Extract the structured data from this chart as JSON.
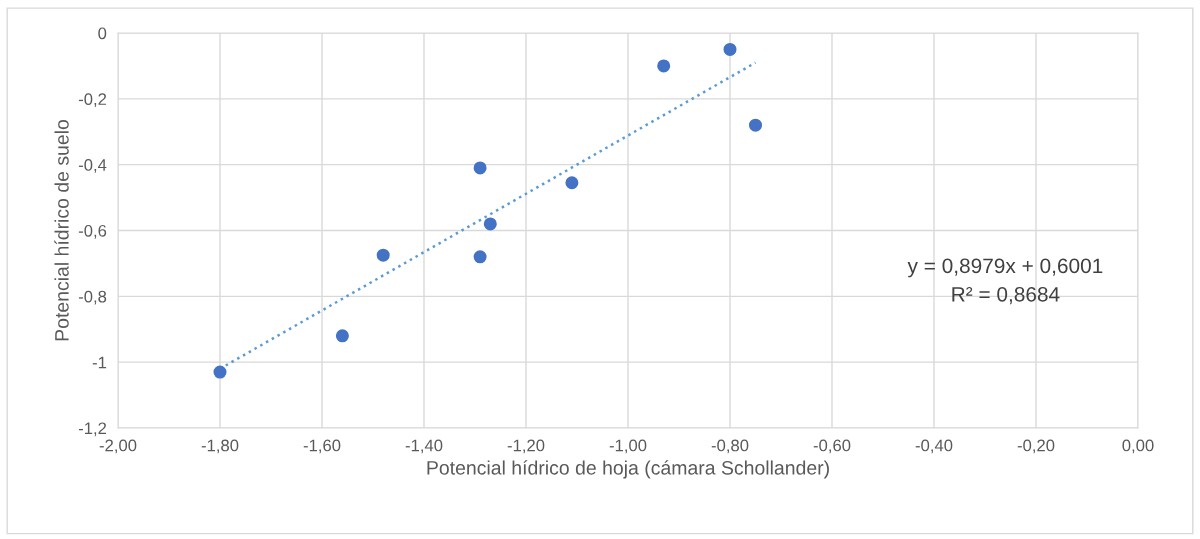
{
  "chart_data": {
    "type": "scatter",
    "xlabel": "Potencial hídrico de hoja (cámara Schollander)",
    "ylabel": "Potencial hídrico de suelo",
    "annotations": [
      "y = 0,8979x + 0,6001\nR² = 0,8684"
    ],
    "series": [
      {
        "color": "#4472c4",
        "marker": "circle",
        "x": [
          -1.8,
          -1.56,
          -1.48,
          -1.29,
          -1.29,
          -1.27,
          -1.11,
          -0.93,
          -0.8,
          -0.75
        ],
        "values": [
          -1.03,
          -0.92,
          -0.675,
          -0.41,
          -0.68,
          -0.58,
          -0.455,
          -0.1,
          -0.05,
          -0.28
        ]
      },
      {
        "type": "line",
        "color": "#5b9bd5",
        "line_style": "dotted",
        "marker": "none",
        "x": [
          -1.8,
          -0.75
        ],
        "values": [
          -1.02,
          -0.09
        ]
      }
    ],
    "xlim": [
      -2,
      0
    ],
    "xticks": [
      {
        "value": -2,
        "label": "-2,00"
      },
      {
        "value": -1.8,
        "label": "-1,80"
      },
      {
        "value": -1.6,
        "label": "-1,60"
      },
      {
        "value": -1.4,
        "label": "-1,40"
      },
      {
        "value": -1.2,
        "label": "-1,20"
      },
      {
        "value": -1,
        "label": "-1,00"
      },
      {
        "value": -0.8,
        "label": "-0,80"
      },
      {
        "value": -0.6,
        "label": "-0,60"
      },
      {
        "value": -0.4,
        "label": "-0,40"
      },
      {
        "value": -0.2,
        "label": "-0,20"
      },
      {
        "value": 0,
        "label": "0,00"
      }
    ],
    "ylim": [
      -1.2,
      0
    ],
    "yticks": [
      {
        "value": -1.2,
        "label": "-1,2"
      },
      {
        "value": -1,
        "label": "-1"
      },
      {
        "value": -0.8,
        "label": "-0,8"
      },
      {
        "value": -0.6,
        "label": "-0,6"
      },
      {
        "value": -0.4,
        "label": "-0,4"
      },
      {
        "value": -0.2,
        "label": "-0,2"
      },
      {
        "value": 0,
        "label": "0"
      }
    ],
    "grid": true,
    "legend": false
  }
}
